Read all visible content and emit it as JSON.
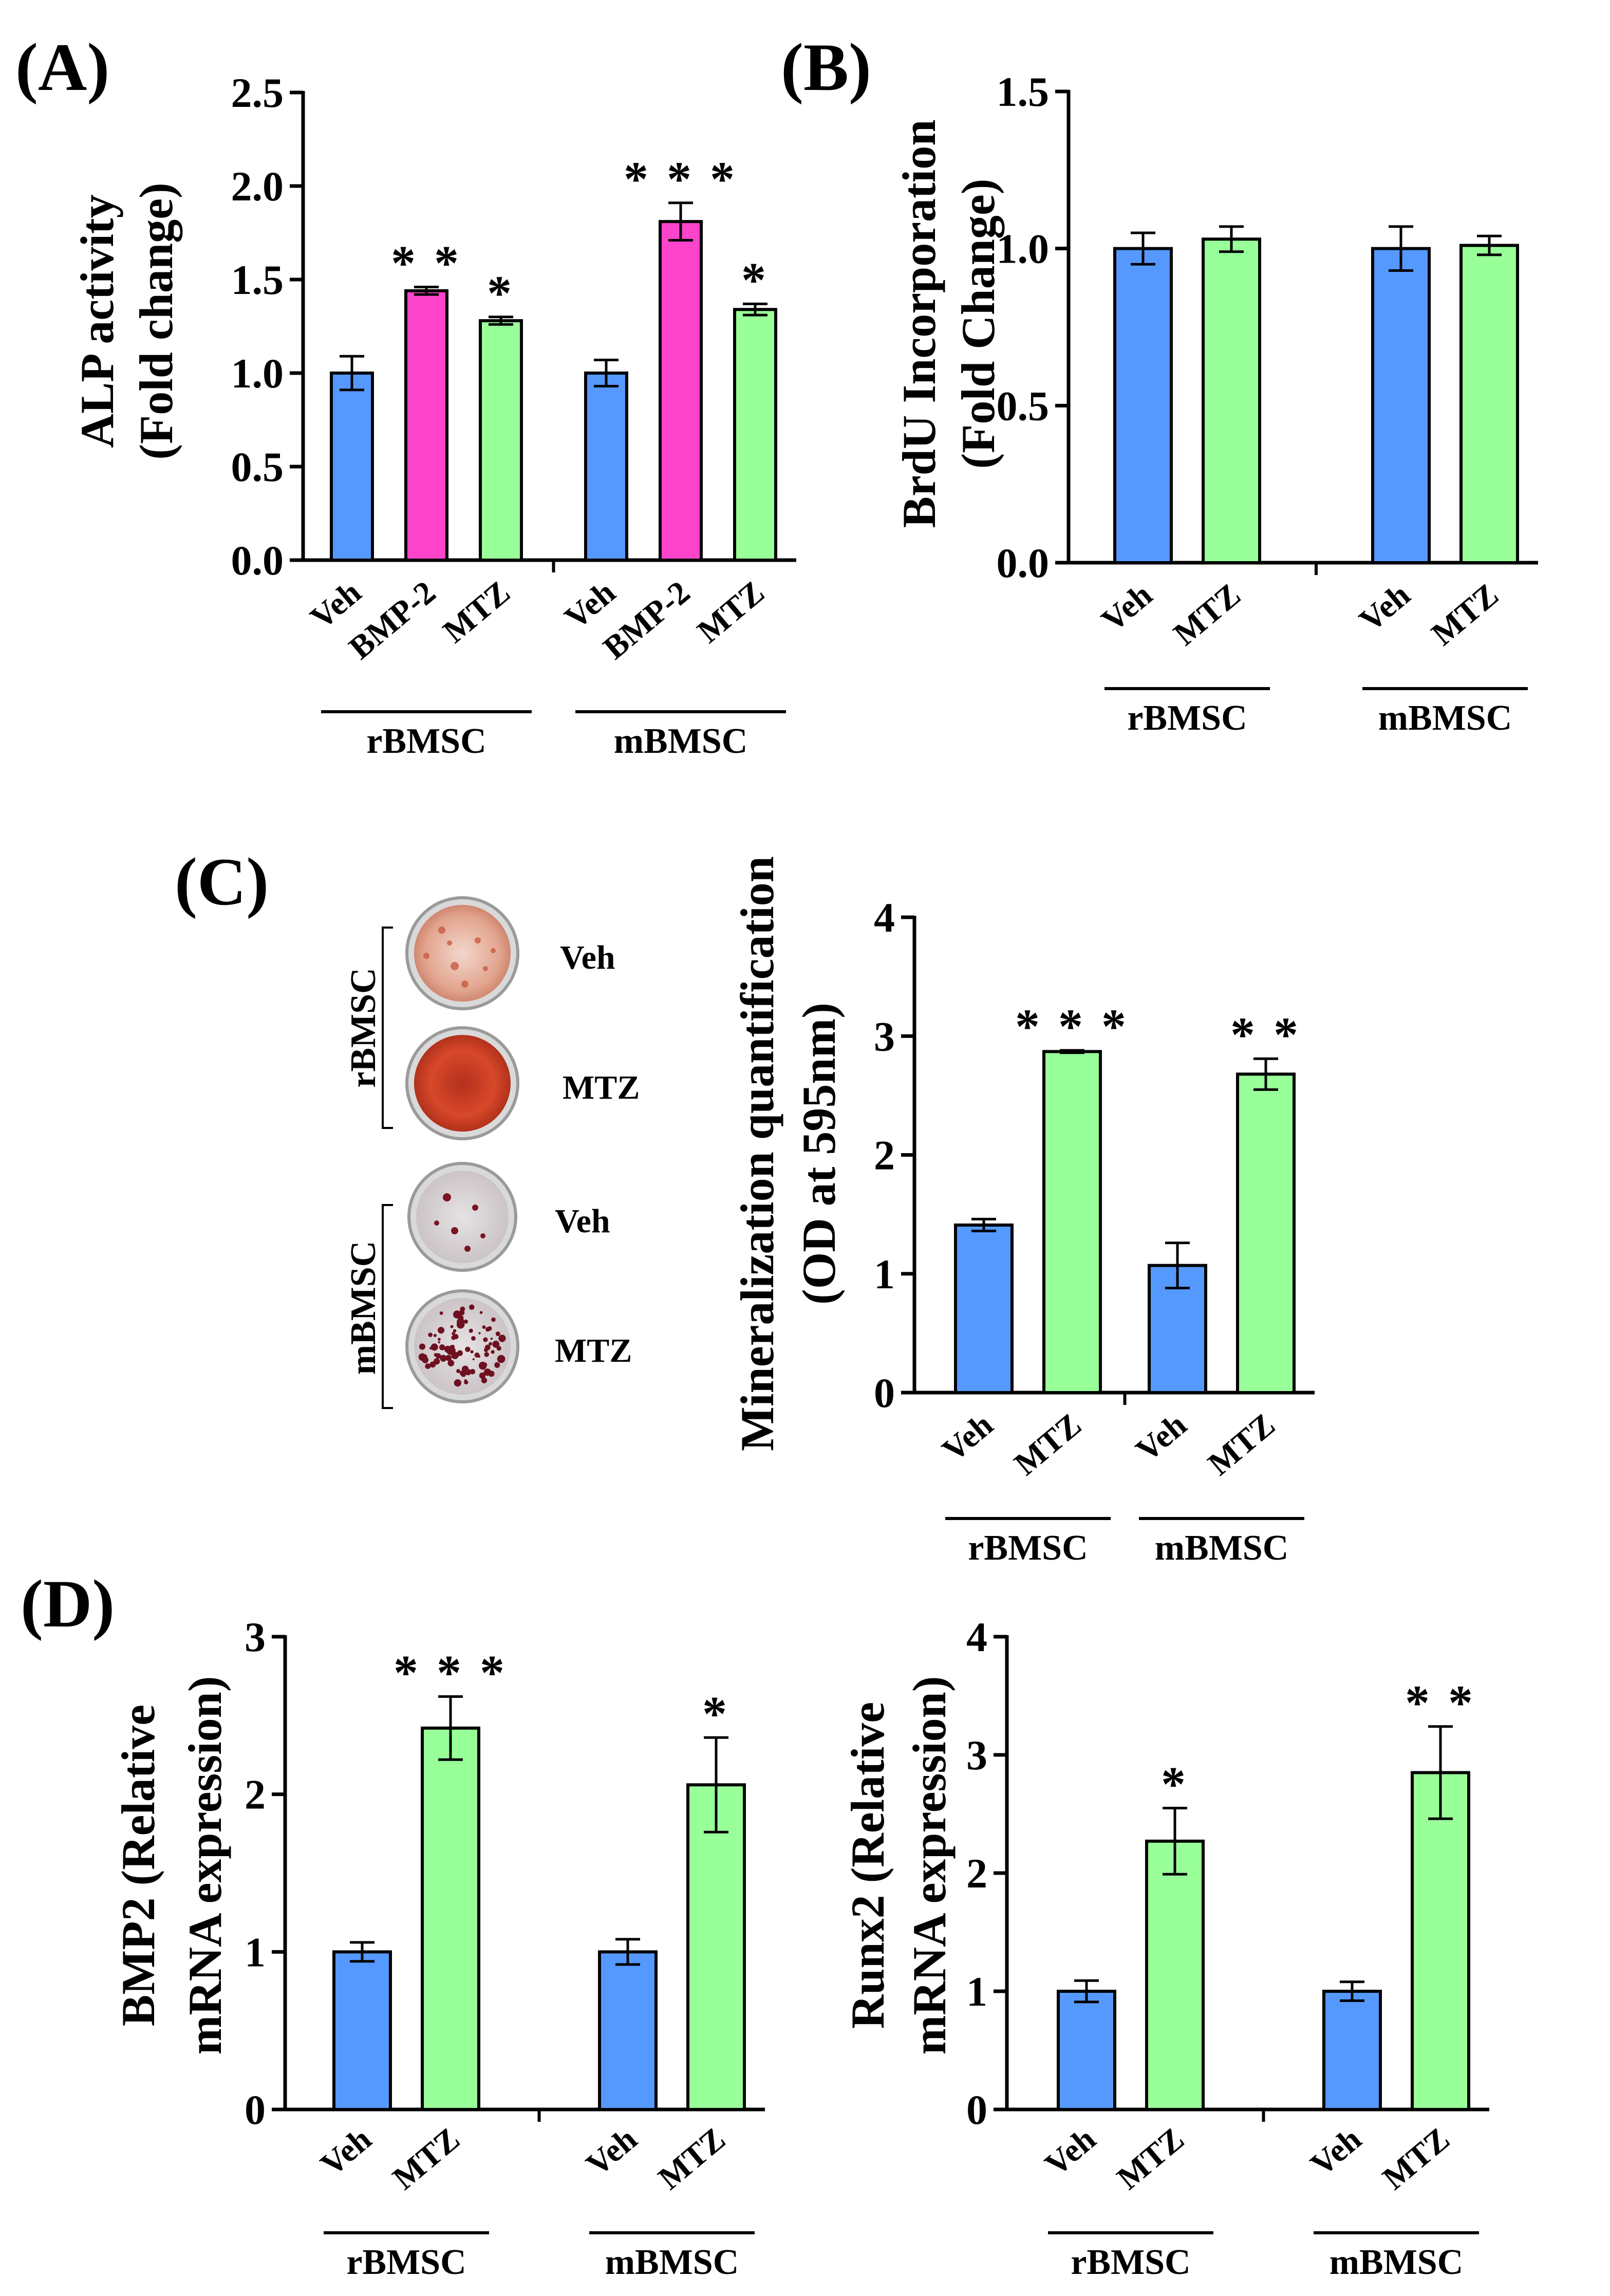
{
  "colors": {
    "veh": "#5599ff",
    "bmp2": "#ff44cc",
    "mtz": "#99ff99",
    "axis": "#000000"
  },
  "panel_labels": {
    "a": "(A)",
    "b": "(B)",
    "c": "(C)",
    "d": "(D)"
  },
  "panel_c_images": {
    "rbmsc_group": "rBMSC",
    "mbmsc_group": "mBMSC",
    "dishes": [
      {
        "group": "rBMSC",
        "label": "Veh",
        "stain": "light-pink"
      },
      {
        "group": "rBMSC",
        "label": "MTZ",
        "stain": "deep-red"
      },
      {
        "group": "mBMSC",
        "label": "Veh",
        "stain": "sparse-dots"
      },
      {
        "group": "mBMSC",
        "label": "MTZ",
        "stain": "dense-dots"
      }
    ]
  },
  "chart_data": [
    {
      "id": "A",
      "type": "bar",
      "ylabel_line1": "ALP activity",
      "ylabel_line2": "(Fold change)",
      "ylim": [
        0,
        2.5
      ],
      "yticks": [
        "0.0",
        "0.5",
        "1.0",
        "1.5",
        "2.0",
        "2.5"
      ],
      "groups": [
        {
          "name": "rBMSC",
          "bars": [
            {
              "label": "Veh",
              "value": 1.0,
              "err": 0.09,
              "sig": "",
              "color": "veh"
            },
            {
              "label": "BMP-2",
              "value": 1.44,
              "err": 0.02,
              "sig": "**",
              "color": "bmp2"
            },
            {
              "label": "MTZ",
              "value": 1.28,
              "err": 0.02,
              "sig": "*",
              "color": "mtz"
            }
          ]
        },
        {
          "name": "mBMSC",
          "bars": [
            {
              "label": "Veh",
              "value": 1.0,
              "err": 0.07,
              "sig": "",
              "color": "veh"
            },
            {
              "label": "BMP-2",
              "value": 1.81,
              "err": 0.1,
              "sig": "***",
              "color": "bmp2"
            },
            {
              "label": "MTZ",
              "value": 1.34,
              "err": 0.03,
              "sig": "*",
              "color": "mtz"
            }
          ]
        }
      ]
    },
    {
      "id": "B",
      "type": "bar",
      "ylabel_line1": "BrdU Incorporation",
      "ylabel_line2": "(Fold Change)",
      "ylim": [
        0,
        1.5
      ],
      "yticks": [
        "0.0",
        "0.5",
        "1.0",
        "1.5"
      ],
      "groups": [
        {
          "name": "rBMSC",
          "bars": [
            {
              "label": "Veh",
              "value": 1.0,
              "err": 0.05,
              "sig": "",
              "color": "veh"
            },
            {
              "label": "MTZ",
              "value": 1.03,
              "err": 0.04,
              "sig": "",
              "color": "mtz"
            }
          ]
        },
        {
          "name": "mBMSC",
          "bars": [
            {
              "label": "Veh",
              "value": 1.0,
              "err": 0.07,
              "sig": "",
              "color": "veh"
            },
            {
              "label": "MTZ",
              "value": 1.01,
              "err": 0.03,
              "sig": "",
              "color": "mtz"
            }
          ]
        }
      ]
    },
    {
      "id": "C",
      "type": "bar",
      "ylabel_line1": "Mineralization quantification",
      "ylabel_line2": "(OD at 595nm)",
      "ylim": [
        0,
        4
      ],
      "yticks": [
        "0",
        "1",
        "2",
        "3",
        "4"
      ],
      "groups": [
        {
          "name": "rBMSC",
          "bars": [
            {
              "label": "Veh",
              "value": 1.41,
              "err": 0.05,
              "sig": "",
              "color": "veh"
            },
            {
              "label": "MTZ",
              "value": 2.87,
              "err": 0.01,
              "sig": "***",
              "color": "mtz"
            }
          ]
        },
        {
          "name": "mBMSC",
          "bars": [
            {
              "label": "Veh",
              "value": 1.07,
              "err": 0.19,
              "sig": "",
              "color": "veh"
            },
            {
              "label": "MTZ",
              "value": 2.68,
              "err": 0.13,
              "sig": "**",
              "color": "mtz"
            }
          ]
        }
      ]
    },
    {
      "id": "D1",
      "type": "bar",
      "ylabel_line1": "BMP2  (Relative",
      "ylabel_line2": "mRNA expression)",
      "ylim": [
        0,
        3
      ],
      "yticks": [
        "0",
        "1",
        "2",
        "3"
      ],
      "groups": [
        {
          "name": "rBMSC",
          "bars": [
            {
              "label": "Veh",
              "value": 1.0,
              "err": 0.06,
              "sig": "",
              "color": "veh"
            },
            {
              "label": "MTZ",
              "value": 2.42,
              "err": 0.2,
              "sig": "***",
              "color": "mtz"
            }
          ]
        },
        {
          "name": "mBMSC",
          "bars": [
            {
              "label": "Veh",
              "value": 1.0,
              "err": 0.08,
              "sig": "",
              "color": "veh"
            },
            {
              "label": "MTZ",
              "value": 2.06,
              "err": 0.3,
              "sig": "*",
              "color": "mtz"
            }
          ]
        }
      ]
    },
    {
      "id": "D2",
      "type": "bar",
      "ylabel_line1": "Runx2  (Relative",
      "ylabel_line2": "mRNA expression)",
      "ylim": [
        0,
        4
      ],
      "yticks": [
        "0",
        "1",
        "2",
        "3",
        "4"
      ],
      "groups": [
        {
          "name": "rBMSC",
          "bars": [
            {
              "label": "Veh",
              "value": 1.0,
              "err": 0.09,
              "sig": "",
              "color": "veh"
            },
            {
              "label": "MTZ",
              "value": 2.27,
              "err": 0.28,
              "sig": "*",
              "color": "mtz"
            }
          ]
        },
        {
          "name": "mBMSC",
          "bars": [
            {
              "label": "Veh",
              "value": 1.0,
              "err": 0.08,
              "sig": "",
              "color": "veh"
            },
            {
              "label": "MTZ",
              "value": 2.85,
              "err": 0.39,
              "sig": "**",
              "color": "mtz"
            }
          ]
        }
      ]
    }
  ]
}
